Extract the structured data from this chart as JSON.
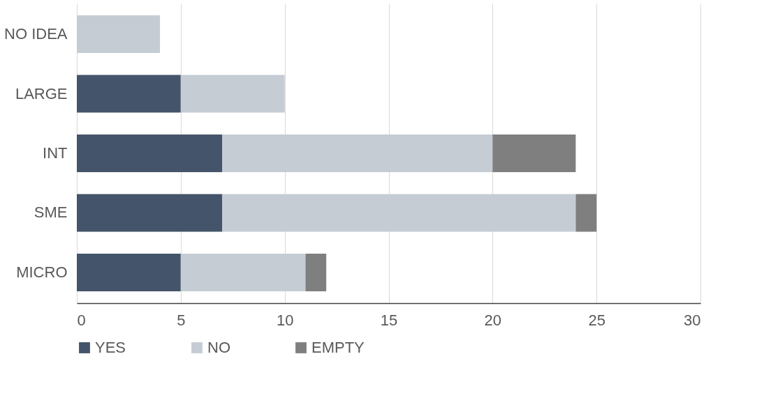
{
  "chart_data": {
    "type": "bar",
    "orientation": "horizontal",
    "stacked": true,
    "categories": [
      "NO IDEA",
      "LARGE",
      "INT",
      "SME",
      "MICRO"
    ],
    "series": [
      {
        "name": "YES",
        "color": "#44546a",
        "values": [
          null,
          5,
          7,
          7,
          5
        ]
      },
      {
        "name": "NO",
        "color": "#c5ccd4",
        "values": [
          4,
          5,
          13,
          17,
          6
        ]
      },
      {
        "name": "EMPTY",
        "color": "#7f7f7f",
        "values": [
          null,
          null,
          4,
          1,
          1
        ]
      }
    ],
    "xlim": [
      0,
      30
    ],
    "xticks": [
      0,
      5,
      10,
      15,
      20,
      25,
      30
    ],
    "grid": "x",
    "legend": "bottom"
  }
}
